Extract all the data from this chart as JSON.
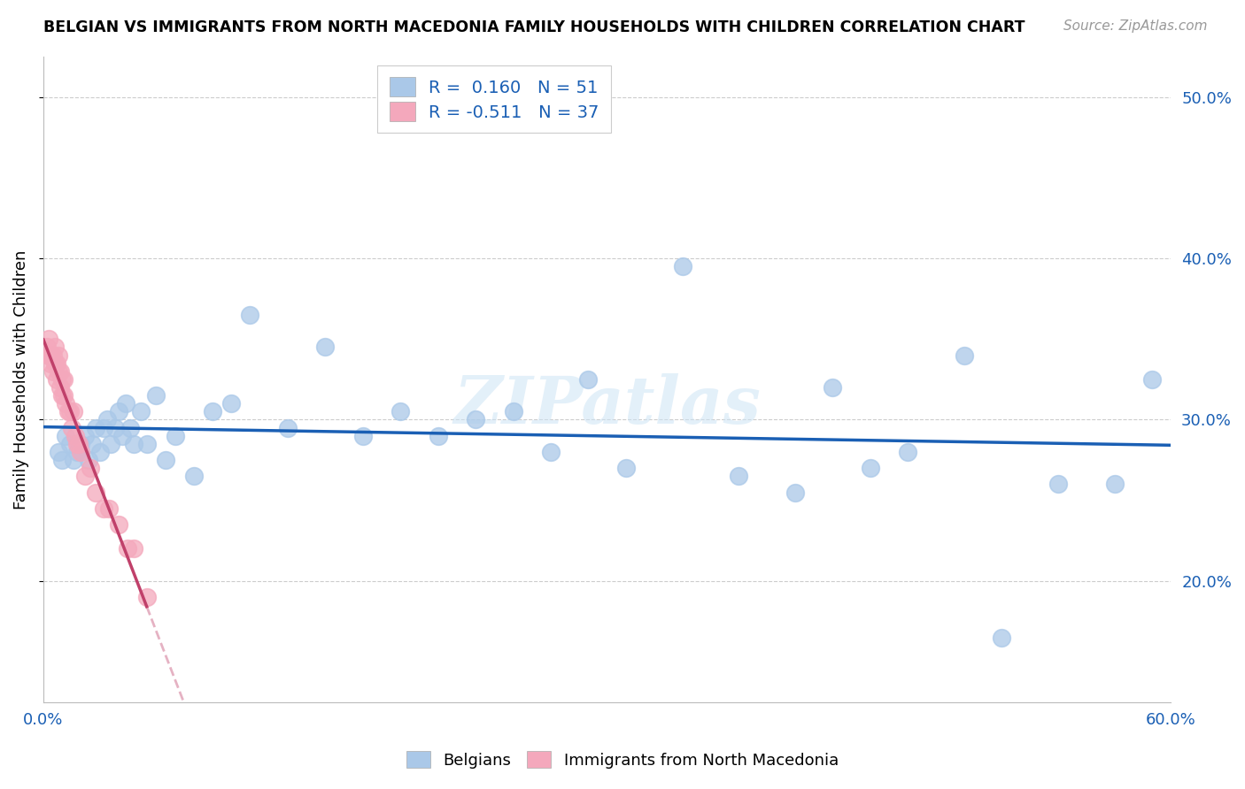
{
  "title": "BELGIAN VS IMMIGRANTS FROM NORTH MACEDONIA FAMILY HOUSEHOLDS WITH CHILDREN CORRELATION CHART",
  "source": "Source: ZipAtlas.com",
  "ylabel": "Family Households with Children",
  "xlim": [
    0.0,
    0.6
  ],
  "ylim": [
    0.125,
    0.525
  ],
  "belgian_R": 0.16,
  "belgian_N": 51,
  "macedonian_R": -0.511,
  "macedonian_N": 37,
  "belgian_color": "#aac8e8",
  "macedonian_color": "#f4a8bc",
  "belgian_line_color": "#1a5fb4",
  "macedonian_line_color": "#c0406a",
  "legend_text_color": "#1a5fb4",
  "watermark": "ZIPatlas",
  "background_color": "#ffffff",
  "grid_color": "#cccccc",
  "belgian_x": [
    0.008,
    0.01,
    0.012,
    0.014,
    0.016,
    0.018,
    0.02,
    0.022,
    0.024,
    0.026,
    0.028,
    0.03,
    0.032,
    0.034,
    0.036,
    0.038,
    0.04,
    0.042,
    0.044,
    0.046,
    0.048,
    0.052,
    0.055,
    0.06,
    0.065,
    0.07,
    0.08,
    0.09,
    0.1,
    0.11,
    0.13,
    0.15,
    0.17,
    0.19,
    0.21,
    0.23,
    0.25,
    0.27,
    0.29,
    0.31,
    0.34,
    0.37,
    0.4,
    0.42,
    0.44,
    0.46,
    0.49,
    0.51,
    0.54,
    0.57,
    0.59
  ],
  "belgian_y": [
    0.28,
    0.275,
    0.29,
    0.285,
    0.275,
    0.28,
    0.285,
    0.29,
    0.275,
    0.285,
    0.295,
    0.28,
    0.295,
    0.3,
    0.285,
    0.295,
    0.305,
    0.29,
    0.31,
    0.295,
    0.285,
    0.305,
    0.285,
    0.315,
    0.275,
    0.29,
    0.265,
    0.305,
    0.31,
    0.365,
    0.295,
    0.345,
    0.29,
    0.305,
    0.29,
    0.3,
    0.305,
    0.28,
    0.325,
    0.27,
    0.395,
    0.265,
    0.255,
    0.32,
    0.27,
    0.28,
    0.34,
    0.165,
    0.26,
    0.26,
    0.325
  ],
  "macedonian_x": [
    0.002,
    0.003,
    0.003,
    0.004,
    0.004,
    0.005,
    0.005,
    0.006,
    0.006,
    0.007,
    0.007,
    0.008,
    0.008,
    0.009,
    0.009,
    0.01,
    0.01,
    0.011,
    0.011,
    0.012,
    0.013,
    0.014,
    0.015,
    0.016,
    0.017,
    0.018,
    0.019,
    0.02,
    0.022,
    0.025,
    0.028,
    0.032,
    0.035,
    0.04,
    0.045,
    0.048,
    0.055
  ],
  "macedonian_y": [
    0.345,
    0.34,
    0.35,
    0.34,
    0.335,
    0.34,
    0.33,
    0.345,
    0.335,
    0.335,
    0.325,
    0.34,
    0.33,
    0.33,
    0.32,
    0.325,
    0.315,
    0.325,
    0.315,
    0.31,
    0.305,
    0.305,
    0.295,
    0.305,
    0.29,
    0.285,
    0.285,
    0.28,
    0.265,
    0.27,
    0.255,
    0.245,
    0.245,
    0.235,
    0.22,
    0.22,
    0.19
  ],
  "mac_line_solid_end": 0.055,
  "mac_line_dashed_end": 0.28,
  "bel_line_start": 0.0,
  "bel_line_end": 0.6
}
